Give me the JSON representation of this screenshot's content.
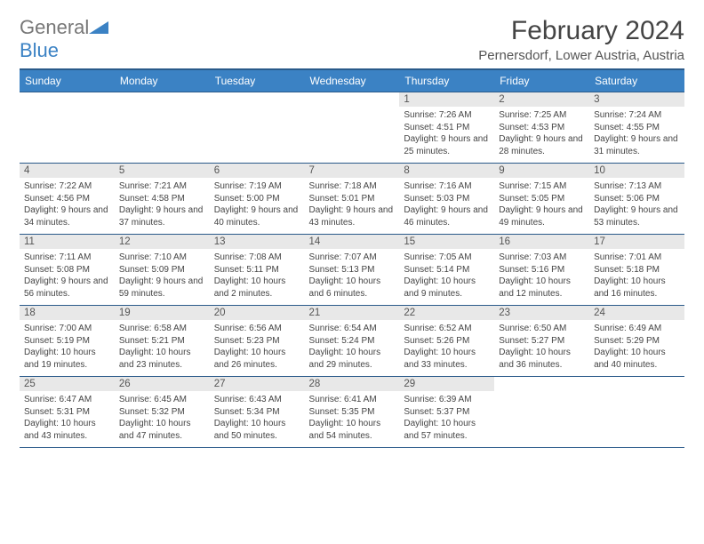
{
  "logo": {
    "text1": "General",
    "text2": "Blue"
  },
  "title": "February 2024",
  "location": "Pernersdorf, Lower Austria, Austria",
  "colors": {
    "header_bg": "#3b82c4",
    "border": "#2a5a8a",
    "daynum_bg": "#e8e8e8"
  },
  "dayHeaders": [
    "Sunday",
    "Monday",
    "Tuesday",
    "Wednesday",
    "Thursday",
    "Friday",
    "Saturday"
  ],
  "weeks": [
    [
      null,
      null,
      null,
      null,
      {
        "n": "1",
        "sr": "7:26 AM",
        "ss": "4:51 PM",
        "dl": "9 hours and 25 minutes."
      },
      {
        "n": "2",
        "sr": "7:25 AM",
        "ss": "4:53 PM",
        "dl": "9 hours and 28 minutes."
      },
      {
        "n": "3",
        "sr": "7:24 AM",
        "ss": "4:55 PM",
        "dl": "9 hours and 31 minutes."
      }
    ],
    [
      {
        "n": "4",
        "sr": "7:22 AM",
        "ss": "4:56 PM",
        "dl": "9 hours and 34 minutes."
      },
      {
        "n": "5",
        "sr": "7:21 AM",
        "ss": "4:58 PM",
        "dl": "9 hours and 37 minutes."
      },
      {
        "n": "6",
        "sr": "7:19 AM",
        "ss": "5:00 PM",
        "dl": "9 hours and 40 minutes."
      },
      {
        "n": "7",
        "sr": "7:18 AM",
        "ss": "5:01 PM",
        "dl": "9 hours and 43 minutes."
      },
      {
        "n": "8",
        "sr": "7:16 AM",
        "ss": "5:03 PM",
        "dl": "9 hours and 46 minutes."
      },
      {
        "n": "9",
        "sr": "7:15 AM",
        "ss": "5:05 PM",
        "dl": "9 hours and 49 minutes."
      },
      {
        "n": "10",
        "sr": "7:13 AM",
        "ss": "5:06 PM",
        "dl": "9 hours and 53 minutes."
      }
    ],
    [
      {
        "n": "11",
        "sr": "7:11 AM",
        "ss": "5:08 PM",
        "dl": "9 hours and 56 minutes."
      },
      {
        "n": "12",
        "sr": "7:10 AM",
        "ss": "5:09 PM",
        "dl": "9 hours and 59 minutes."
      },
      {
        "n": "13",
        "sr": "7:08 AM",
        "ss": "5:11 PM",
        "dl": "10 hours and 2 minutes."
      },
      {
        "n": "14",
        "sr": "7:07 AM",
        "ss": "5:13 PM",
        "dl": "10 hours and 6 minutes."
      },
      {
        "n": "15",
        "sr": "7:05 AM",
        "ss": "5:14 PM",
        "dl": "10 hours and 9 minutes."
      },
      {
        "n": "16",
        "sr": "7:03 AM",
        "ss": "5:16 PM",
        "dl": "10 hours and 12 minutes."
      },
      {
        "n": "17",
        "sr": "7:01 AM",
        "ss": "5:18 PM",
        "dl": "10 hours and 16 minutes."
      }
    ],
    [
      {
        "n": "18",
        "sr": "7:00 AM",
        "ss": "5:19 PM",
        "dl": "10 hours and 19 minutes."
      },
      {
        "n": "19",
        "sr": "6:58 AM",
        "ss": "5:21 PM",
        "dl": "10 hours and 23 minutes."
      },
      {
        "n": "20",
        "sr": "6:56 AM",
        "ss": "5:23 PM",
        "dl": "10 hours and 26 minutes."
      },
      {
        "n": "21",
        "sr": "6:54 AM",
        "ss": "5:24 PM",
        "dl": "10 hours and 29 minutes."
      },
      {
        "n": "22",
        "sr": "6:52 AM",
        "ss": "5:26 PM",
        "dl": "10 hours and 33 minutes."
      },
      {
        "n": "23",
        "sr": "6:50 AM",
        "ss": "5:27 PM",
        "dl": "10 hours and 36 minutes."
      },
      {
        "n": "24",
        "sr": "6:49 AM",
        "ss": "5:29 PM",
        "dl": "10 hours and 40 minutes."
      }
    ],
    [
      {
        "n": "25",
        "sr": "6:47 AM",
        "ss": "5:31 PM",
        "dl": "10 hours and 43 minutes."
      },
      {
        "n": "26",
        "sr": "6:45 AM",
        "ss": "5:32 PM",
        "dl": "10 hours and 47 minutes."
      },
      {
        "n": "27",
        "sr": "6:43 AM",
        "ss": "5:34 PM",
        "dl": "10 hours and 50 minutes."
      },
      {
        "n": "28",
        "sr": "6:41 AM",
        "ss": "5:35 PM",
        "dl": "10 hours and 54 minutes."
      },
      {
        "n": "29",
        "sr": "6:39 AM",
        "ss": "5:37 PM",
        "dl": "10 hours and 57 minutes."
      },
      null,
      null
    ]
  ]
}
